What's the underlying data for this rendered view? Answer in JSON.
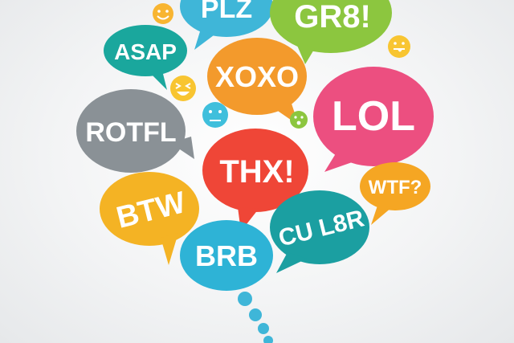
{
  "bubbles": {
    "plz": {
      "text": "PLZ",
      "color": "#3fb6d8"
    },
    "gr8": {
      "text": "GR8!",
      "color": "#8cc63f"
    },
    "asap": {
      "text": "ASAP",
      "color": "#1aa79d"
    },
    "xoxo": {
      "text": "XOXO",
      "color": "#f39a2c"
    },
    "lol": {
      "text": "LOL",
      "color": "#ec4f80"
    },
    "rotfl": {
      "text": "ROTFL",
      "color": "#8a9196"
    },
    "thx": {
      "text": "THX!",
      "color": "#ef4637"
    },
    "wtf": {
      "text": "WTF?",
      "color": "#f5a623"
    },
    "btw": {
      "text": "BTW",
      "color": "#f4b324"
    },
    "cul8r": {
      "text": "CU L8R",
      "color": "#1b9fa1"
    },
    "brb": {
      "text": "BRB",
      "color": "#2eb3d6"
    }
  },
  "emoticons": [
    {
      "name": "smile-emoticon-icon",
      "color": "#f8b531"
    },
    {
      "name": "tongue-emoticon-icon",
      "color": "#f8c531"
    },
    {
      "name": "laughing-emoticon-icon",
      "color": "#f8c531"
    },
    {
      "name": "neutral-emoticon-icon",
      "color": "#3fbfdc"
    },
    {
      "name": "surprised-emoticon-icon",
      "color": "#8cc63f"
    }
  ],
  "trail_color": "#3fb6d8"
}
